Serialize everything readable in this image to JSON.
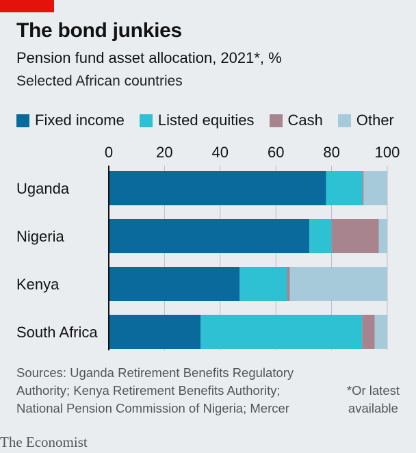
{
  "header": {
    "title": "The bond junkies",
    "subtitle": "Pension fund asset allocation, 2021*, %",
    "subsubtitle": "Selected African countries"
  },
  "legend": [
    {
      "label": "Fixed income",
      "color": "#0b6a9c"
    },
    {
      "label": "Listed equities",
      "color": "#2ec0d3"
    },
    {
      "label": "Cash",
      "color": "#a8848f"
    },
    {
      "label": "Other",
      "color": "#a7cadb"
    }
  ],
  "chart_data": {
    "type": "bar",
    "orientation": "horizontal",
    "stacked": true,
    "categories": [
      "Uganda",
      "Nigeria",
      "Kenya",
      "South Africa"
    ],
    "series": [
      {
        "name": "Fixed income",
        "values": [
          78,
          72,
          47,
          33
        ]
      },
      {
        "name": "Listed equities",
        "values": [
          13,
          8,
          17,
          58
        ]
      },
      {
        "name": "Cash",
        "values": [
          0.5,
          17,
          1,
          4.5
        ]
      },
      {
        "name": "Other",
        "values": [
          8.5,
          3,
          35,
          4.5
        ]
      }
    ],
    "xlim": [
      0,
      100
    ],
    "xticks": [
      0,
      20,
      40,
      60,
      80,
      100
    ],
    "tick_labels": [
      "0",
      "20",
      "40",
      "60",
      "80",
      "100"
    ],
    "axis_position": "top",
    "grid": true,
    "legend_position": "top"
  },
  "footer": {
    "sources": "Sources: Uganda Retirement Benefits Regulatory Authority; Kenya Retirement Benefits Authority; National Pension Commission of Nigeria; Mercer",
    "footnote_line1": "*Or latest",
    "footnote_line2": "available",
    "brand": "The Economist"
  }
}
